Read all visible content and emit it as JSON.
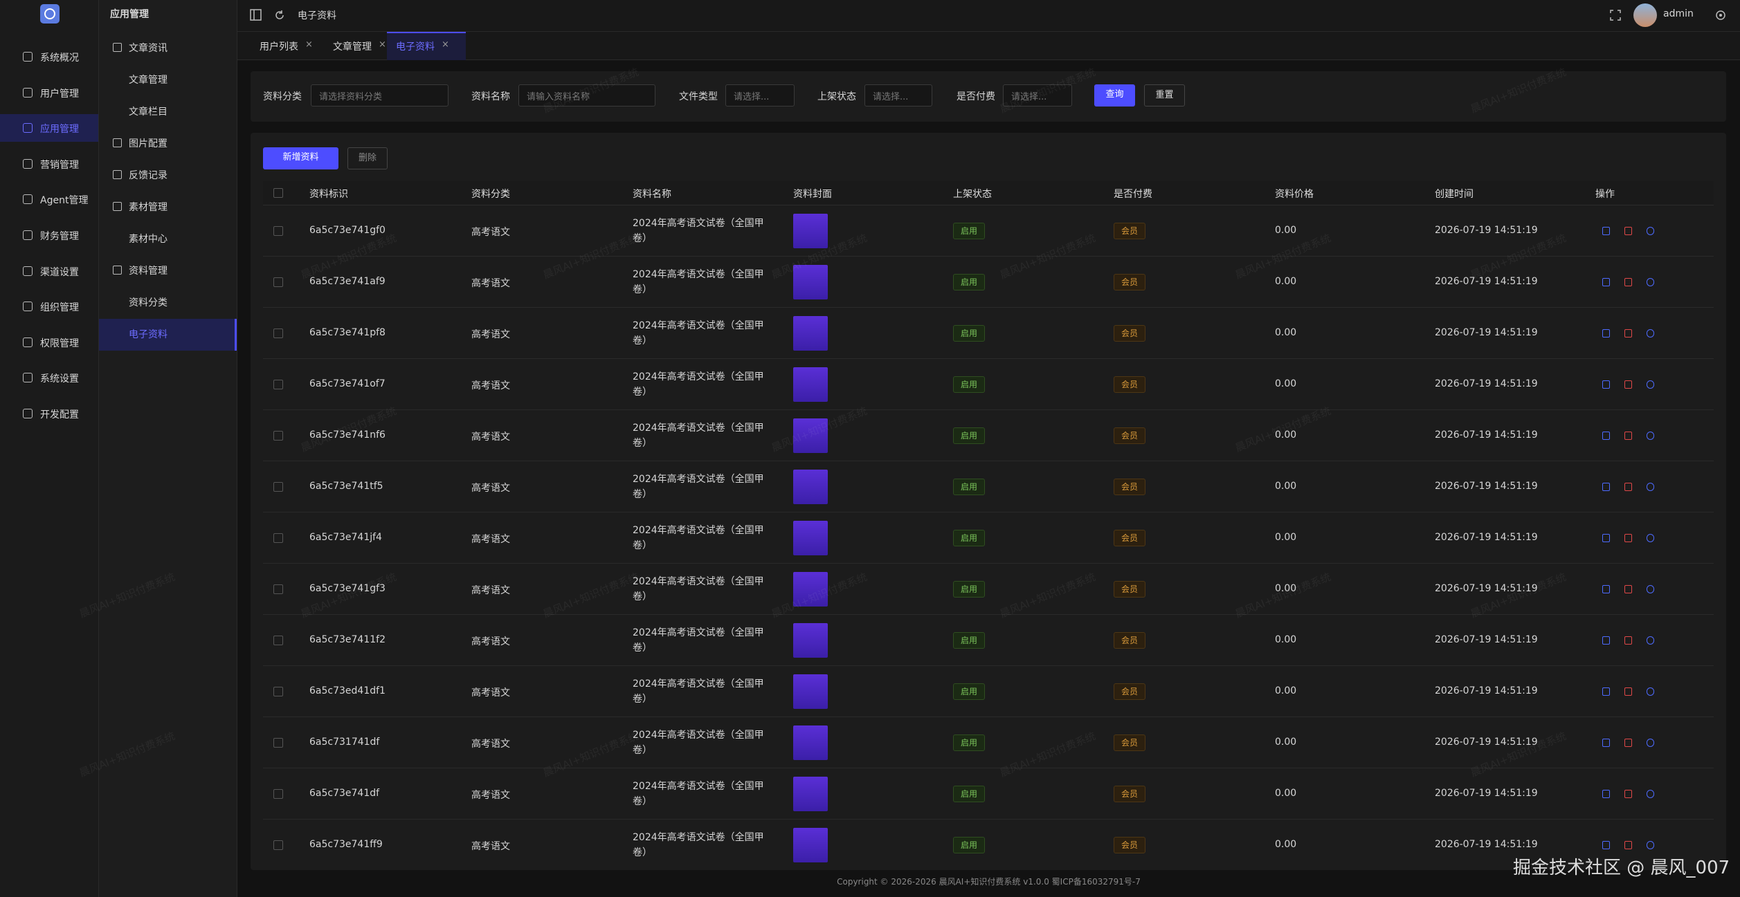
{
  "sidebar": {
    "items": [
      "系统概况",
      "用户管理",
      "应用管理",
      "营销管理",
      "Agent管理",
      "财务管理",
      "渠道设置",
      "组织管理",
      "权限管理",
      "系统设置",
      "开发配置"
    ],
    "active": 2
  },
  "submenu": {
    "title": "应用管理",
    "items": [
      {
        "label": "文章资讯",
        "group": true
      },
      {
        "label": "文章管理",
        "group": false
      },
      {
        "label": "文章栏目",
        "group": false
      },
      {
        "label": "图片配置",
        "group": true
      },
      {
        "label": "反馈记录",
        "group": true
      },
      {
        "label": "素材管理",
        "group": true
      },
      {
        "label": "素材中心",
        "group": false
      },
      {
        "label": "资料管理",
        "group": true
      },
      {
        "label": "资料分类",
        "group": false
      },
      {
        "label": "电子资料",
        "group": false
      }
    ],
    "active": 9
  },
  "topbar": {
    "breadcrumb": "电子资料",
    "user": "admin"
  },
  "tabs": {
    "items": [
      "用户列表",
      "文章管理",
      "电子资料"
    ],
    "active": 2
  },
  "filters": [
    {
      "label": "资料分类",
      "placeholder": "请选择资料分类"
    },
    {
      "label": "资料名称",
      "placeholder": "请输入资料名称"
    },
    {
      "label": "文件类型",
      "placeholder": "请选择..."
    },
    {
      "label": "上架状态",
      "placeholder": "请选择..."
    },
    {
      "label": "是否付费",
      "placeholder": "请选择..."
    }
  ],
  "filter_buttons": [
    "查询",
    "重置"
  ],
  "toolbar": [
    "新增资料",
    "删除"
  ],
  "table": {
    "headers": [
      "资料标识",
      "资料分类",
      "资料名称",
      "资料封面",
      "上架状态",
      "是否付费",
      "资料价格",
      "创建时间",
      "操作"
    ],
    "rows": [
      [
        "6a5c73e741gf0",
        "高考语文",
        "2024年高考语文试卷（全国甲卷）",
        "启用",
        "会员",
        "0.00",
        "2026-07-19 14:51:19"
      ],
      [
        "6a5c73e741af9",
        "高考语文",
        "2024年高考语文试卷（全国甲卷）",
        "启用",
        "会员",
        "0.00",
        "2026-07-19 14:51:19"
      ],
      [
        "6a5c73e741pf8",
        "高考语文",
        "2024年高考语文试卷（全国甲卷）",
        "启用",
        "会员",
        "0.00",
        "2026-07-19 14:51:19"
      ],
      [
        "6a5c73e741of7",
        "高考语文",
        "2024年高考语文试卷（全国甲卷）",
        "启用",
        "会员",
        "0.00",
        "2026-07-19 14:51:19"
      ],
      [
        "6a5c73e741nf6",
        "高考语文",
        "2024年高考语文试卷（全国甲卷）",
        "启用",
        "会员",
        "0.00",
        "2026-07-19 14:51:19"
      ],
      [
        "6a5c73e741tf5",
        "高考语文",
        "2024年高考语文试卷（全国甲卷）",
        "启用",
        "会员",
        "0.00",
        "2026-07-19 14:51:19"
      ],
      [
        "6a5c73e741jf4",
        "高考语文",
        "2024年高考语文试卷（全国甲卷）",
        "启用",
        "会员",
        "0.00",
        "2026-07-19 14:51:19"
      ],
      [
        "6a5c73e741gf3",
        "高考语文",
        "2024年高考语文试卷（全国甲卷）",
        "启用",
        "会员",
        "0.00",
        "2026-07-19 14:51:19"
      ],
      [
        "6a5c73e7411f2",
        "高考语文",
        "2024年高考语文试卷（全国甲卷）",
        "启用",
        "会员",
        "0.00",
        "2026-07-19 14:51:19"
      ],
      [
        "6a5c73ed41df1",
        "高考语文",
        "2024年高考语文试卷（全国甲卷）",
        "启用",
        "会员",
        "0.00",
        "2026-07-19 14:51:19"
      ],
      [
        "6a5c731741df",
        "高考语文",
        "2024年高考语文试卷（全国甲卷）",
        "启用",
        "会员",
        "0.00",
        "2026-07-19 14:51:19"
      ],
      [
        "6a5c73e741df",
        "高考语文",
        "2024年高考语文试卷（全国甲卷）",
        "启用",
        "会员",
        "0.00",
        "2026-07-19 14:51:19"
      ],
      [
        "6a5c73e741ff9",
        "高考语文",
        "2024年高考语文试卷（全国甲卷）",
        "启用",
        "会员",
        "0.00",
        "2026-07-19 14:51:19"
      ]
    ]
  },
  "footer": "Copyright © 2026-2026 晨风AI+知识付费系统 v1.0.0  蜀ICP备16032791号-7",
  "watermark": "晨风AI+知识付费系统",
  "corner_watermark": "掘金技术社区 @ 晨风_007"
}
